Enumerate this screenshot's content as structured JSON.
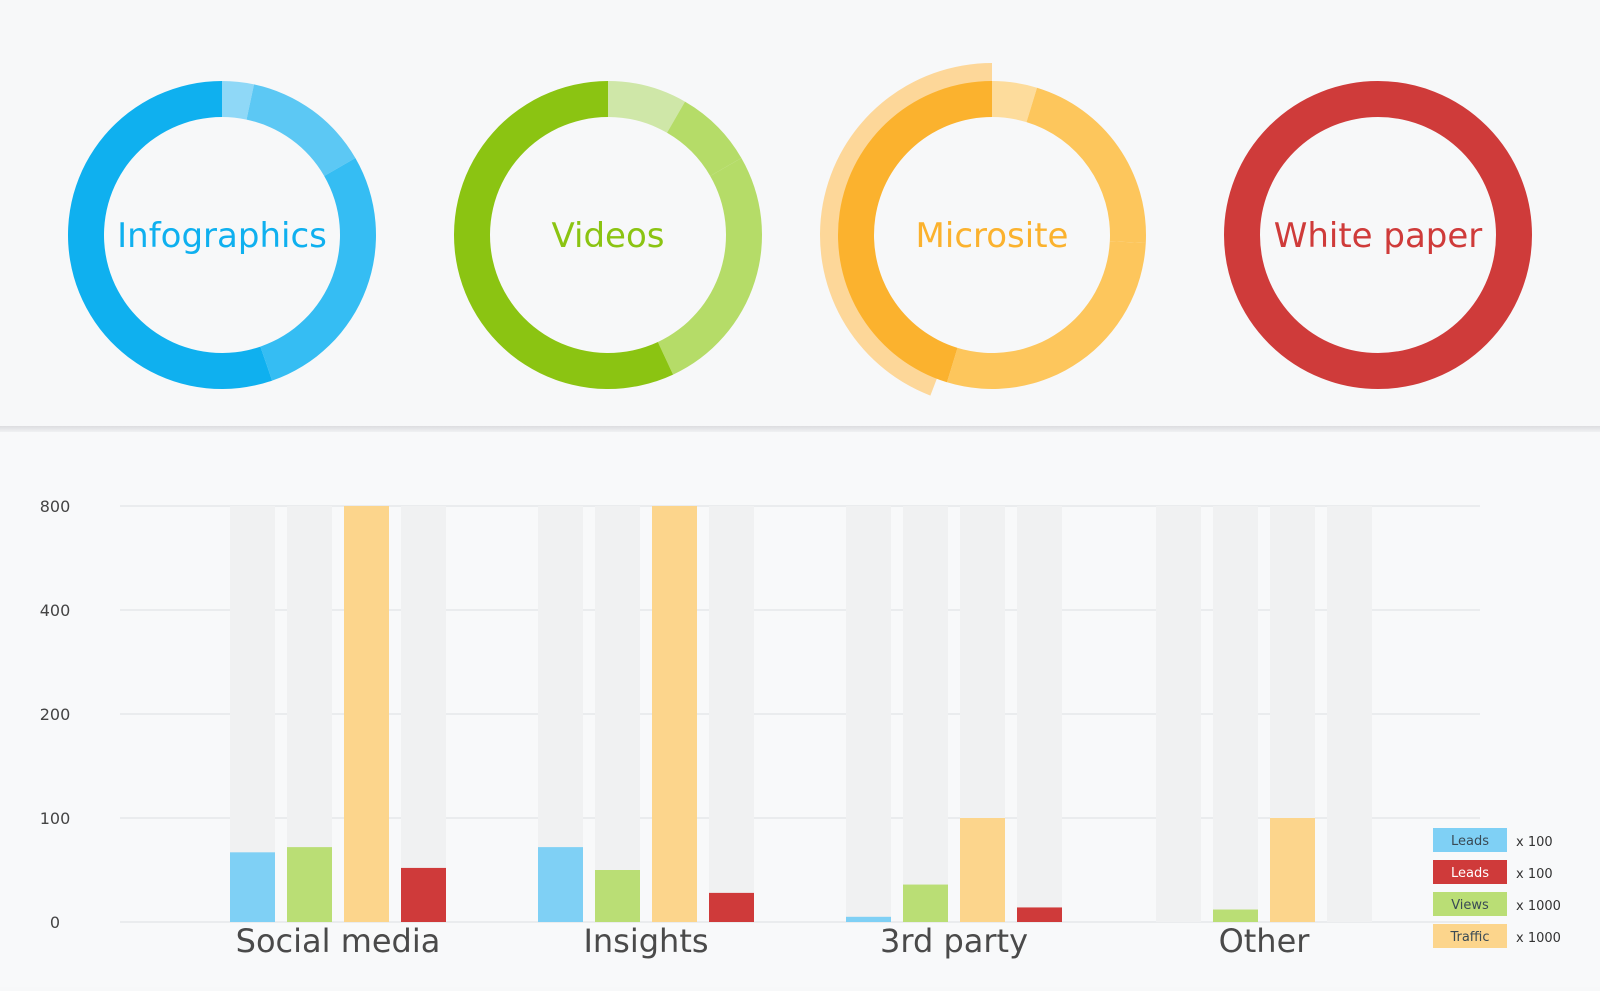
{
  "donuts": [
    {
      "label": "Infographics",
      "color": "#0fb0ef",
      "light": "#5cc8f4",
      "lighter": "#8fd8f7"
    },
    {
      "label": "Videos",
      "color": "#8bc412",
      "light": "#b5dc68",
      "lighter": "#cfe7a8"
    },
    {
      "label": "Microsite",
      "color": "#fbb22e",
      "light": "#fdc65c",
      "lighter": "#fddc9c"
    },
    {
      "label": "White paper",
      "color": "#cf3b3a",
      "light": "#cf3b3a",
      "lighter": "#cf3b3a"
    }
  ],
  "chart_data": {
    "type": "bar",
    "categories": [
      "Social media",
      "Insights",
      "3rd party",
      "Other"
    ],
    "yticks": [
      "0",
      "100",
      "200",
      "400",
      "800"
    ],
    "series": [
      {
        "name": "Leads",
        "color": "#7fd0f5",
        "values": [
          67,
          72,
          5,
          0
        ]
      },
      {
        "name": "Views",
        "color": "#bade75",
        "values": [
          72,
          50,
          36,
          12
        ]
      },
      {
        "name": "Traffic",
        "color": "#fcd58c",
        "values": [
          800,
          800,
          100,
          100
        ]
      },
      {
        "name": "Leads",
        "color": "#cf3a3a",
        "values": [
          52,
          28,
          14,
          0
        ]
      }
    ],
    "legend": [
      {
        "name": "Leads",
        "color": "#7fd0f5",
        "multiplier": "x 100"
      },
      {
        "name": "Leads",
        "color": "#cf3a3a",
        "multiplier": "x 100"
      },
      {
        "name": "Views",
        "color": "#bade75",
        "multiplier": "x 1000"
      },
      {
        "name": "Traffic",
        "color": "#fcd58c",
        "multiplier": "x 1000"
      }
    ],
    "ylim": [
      0,
      800
    ],
    "grid": true,
    "legend_position": "bottom-right"
  }
}
